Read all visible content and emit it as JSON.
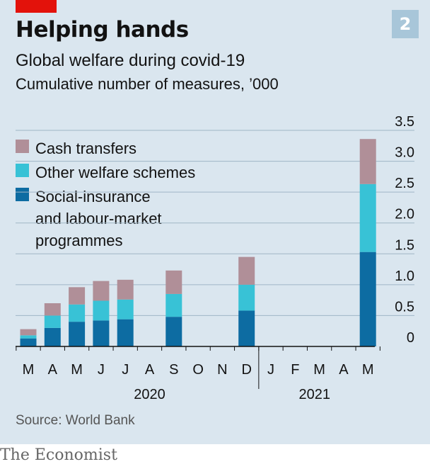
{
  "header": {
    "chart_number": "2",
    "title": "Helping hands",
    "subtitle": "Global welfare during covid-19",
    "units": "Cumulative number of measures, ’000"
  },
  "source": "Source: World Bank",
  "footer": "The Economist",
  "colors": {
    "cash": "#b08f98",
    "other": "#38c2d6",
    "social": "#0d6ca2",
    "grid": "#9fb5c6",
    "axis": "#121212",
    "text": "#121212"
  },
  "chart_data": {
    "type": "bar",
    "stacked": true,
    "categories": [
      "M",
      "A",
      "M",
      "J",
      "J",
      "A",
      "S",
      "O",
      "N",
      "D",
      "J",
      "F",
      "M",
      "A",
      "M"
    ],
    "year_labels": [
      "2020",
      "2021"
    ],
    "ylim": [
      0,
      3.5
    ],
    "yticks": [
      "0",
      "0.5",
      "1.0",
      "1.5",
      "2.0",
      "2.5",
      "3.0",
      "3.5"
    ],
    "grid": true,
    "legend_position": "top-left",
    "series": [
      {
        "name": "Social-insurance\nand labour-market\nprogrammes",
        "color": "#0d6ca2",
        "values": [
          0.13,
          0.3,
          0.4,
          0.42,
          0.44,
          null,
          0.48,
          null,
          null,
          0.58,
          null,
          null,
          null,
          null,
          1.53
        ]
      },
      {
        "name": "Other welfare schemes",
        "color": "#38c2d6",
        "values": [
          0.05,
          0.2,
          0.28,
          0.32,
          0.32,
          null,
          0.37,
          null,
          null,
          0.42,
          null,
          null,
          null,
          null,
          1.1
        ]
      },
      {
        "name": "Cash transfers",
        "color": "#b08f98",
        "values": [
          0.1,
          0.2,
          0.28,
          0.32,
          0.32,
          null,
          0.38,
          null,
          null,
          0.45,
          null,
          null,
          null,
          null,
          0.73
        ]
      }
    ]
  }
}
